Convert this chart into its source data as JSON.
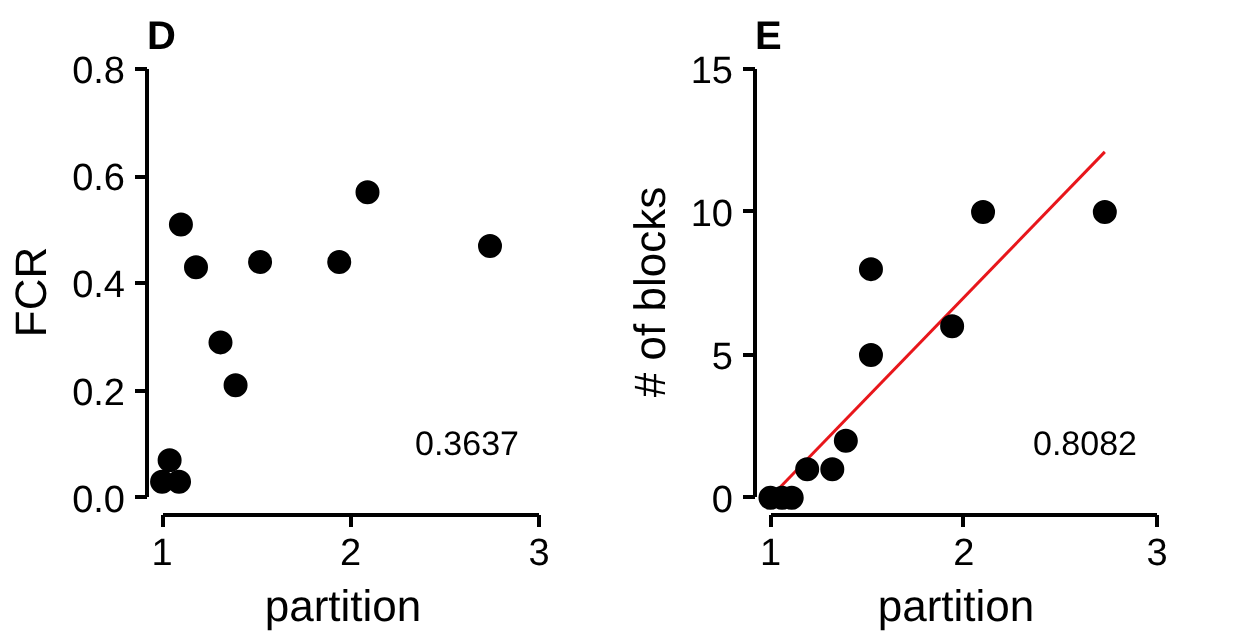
{
  "chart_data": [
    {
      "type": "scatter",
      "title": "D",
      "xlabel": "partition",
      "ylabel": "FCR",
      "xlim": [
        1,
        3
      ],
      "xticks": [
        1,
        2,
        3
      ],
      "ylim": [
        0,
        0.8
      ],
      "yticks": [
        {
          "value": 0,
          "label": "0.0"
        },
        0.2,
        0.4,
        0.6,
        0.8
      ],
      "marker": "circle",
      "annotations": [
        "0.3637"
      ],
      "series": [
        {
          "color": "#000000",
          "x": [
            1.0,
            1.04,
            1.09,
            1.1,
            1.18,
            1.31,
            1.39,
            1.52,
            1.94,
            2.09,
            2.74
          ],
          "values": [
            0.03,
            0.07,
            0.03,
            0.51,
            0.43,
            0.29,
            0.21,
            0.44,
            0.44,
            0.57,
            0.47
          ]
        }
      ]
    },
    {
      "type": "scatter",
      "title": "E",
      "xlabel": "partition",
      "ylabel": "# of blocks",
      "xlim": [
        1,
        3
      ],
      "xticks": [
        1,
        2,
        3
      ],
      "ylim": [
        0,
        15
      ],
      "yticks": [
        0,
        5,
        10,
        15
      ],
      "marker": "circle",
      "annotations": [
        "0.8082"
      ],
      "series": [
        {
          "color": "#000000",
          "x": [
            1.0,
            1.06,
            1.11,
            1.19,
            1.32,
            1.39,
            1.52,
            1.52,
            1.94,
            2.1,
            2.73
          ],
          "values": [
            0,
            0,
            0,
            1,
            1,
            2,
            5,
            8,
            6,
            10,
            10
          ]
        },
        {
          "type": "line",
          "marker": "none",
          "color": "#e8161b",
          "x": [
            1.04,
            2.73
          ],
          "values": [
            0.3,
            12.1
          ]
        }
      ]
    }
  ]
}
